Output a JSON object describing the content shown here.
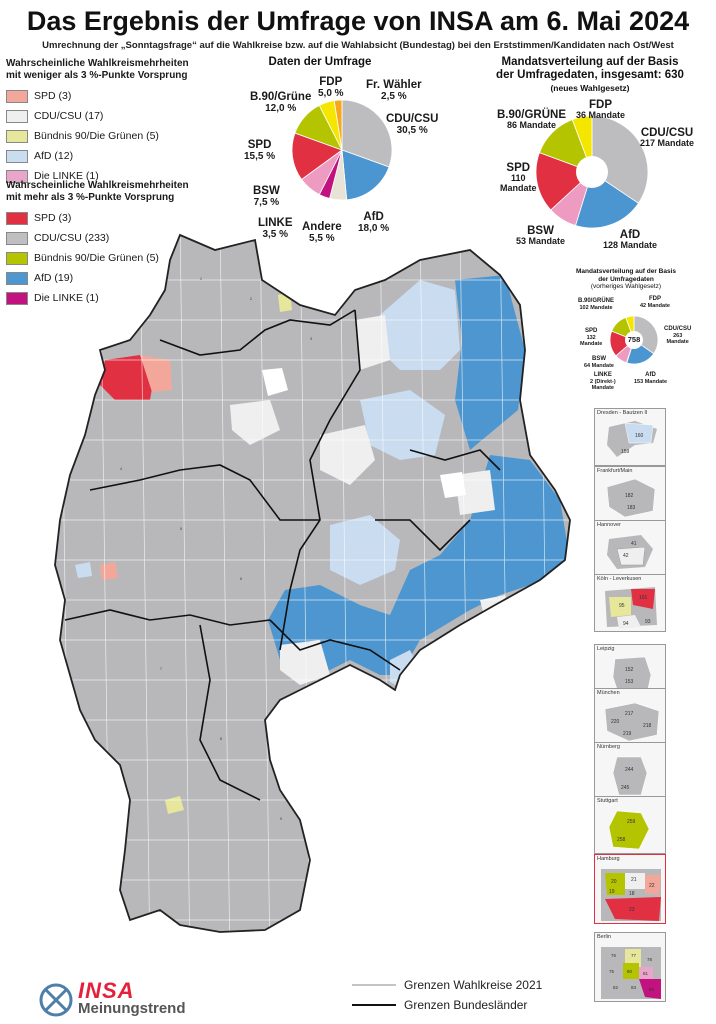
{
  "header": {
    "title": "Das Ergebnis der Umfrage von INSA am 6. Mai 2024",
    "subtitle": "Umrechnung der „Sonntagsfrage“ auf die Wahlkreise bzw. auf die Wahlabsicht (Bundestag) bei den Erststimmen/Kandidaten nach Ost/West"
  },
  "legend_weak": {
    "heading_line1": "Wahrscheinliche Wahlkreismehrheiten",
    "heading_line2": "mit weniger als 3 %-Punkte Vorsprung",
    "items": [
      {
        "label": "SPD (3)",
        "color": "#f2a79a"
      },
      {
        "label": "CDU/CSU (17)",
        "color": "#efefef"
      },
      {
        "label": "Bündnis 90/Die Grünen (5)",
        "color": "#e6e79a"
      },
      {
        "label": "AfD (12)",
        "color": "#c9dcf0"
      },
      {
        "label": "Die LINKE (1)",
        "color": "#e9a6cb"
      }
    ]
  },
  "legend_strong": {
    "heading_line1": "Wahrscheinliche Wahlkreismehrheiten",
    "heading_line2": "mit mehr als 3 %-Punkte Vorsprung",
    "items": [
      {
        "label": "SPD (3)",
        "color": "#e03042"
      },
      {
        "label": "CDU/CSU (233)",
        "color": "#bfbfc2"
      },
      {
        "label": "Bündnis 90/Die Grünen (5)",
        "color": "#b5c400"
      },
      {
        "label": "AfD (19)",
        "color": "#4d96d0"
      },
      {
        "label": "Die LINKE (1)",
        "color": "#c2127f"
      }
    ]
  },
  "chart_data": [
    {
      "type": "pie",
      "title": "Daten der Umfrage",
      "slices": [
        {
          "name": "CDU/CSU",
          "label": "30,5 %",
          "value": 30.5,
          "color": "#bdbdc0"
        },
        {
          "name": "AfD",
          "label": "18,0 %",
          "value": 18.0,
          "color": "#4b95d0"
        },
        {
          "name": "Andere",
          "label": "5,5 %",
          "value": 5.5,
          "color": "#e7e3d6"
        },
        {
          "name": "LINKE",
          "label": "3,5 %",
          "value": 3.5,
          "color": "#c2127f"
        },
        {
          "name": "BSW",
          "label": "7,5 %",
          "value": 7.5,
          "color": "#ee9bc1"
        },
        {
          "name": "SPD",
          "label": "15,5 %",
          "value": 15.5,
          "color": "#e03042"
        },
        {
          "name": "B.90/Grüne",
          "label": "12,0 %",
          "value": 12.0,
          "color": "#b5c400"
        },
        {
          "name": "FDP",
          "label": "5,0 %",
          "value": 5.0,
          "color": "#f5e600"
        },
        {
          "name": "Fr. Wähler",
          "label": "2,5 %",
          "value": 2.5,
          "color": "#f6a81d"
        }
      ]
    },
    {
      "type": "pie",
      "title_line1": "Mandatsverteilung auf der Basis",
      "title_line2": "der Umfragedaten, insgesamt: 630",
      "title_line3": "(neues Wahlgesetz)",
      "slices": [
        {
          "name": "CDU/CSU",
          "label": "217 Mandate",
          "value": 217,
          "color": "#bdbdc0"
        },
        {
          "name": "AfD",
          "label": "128 Mandate",
          "value": 128,
          "color": "#4b95d0"
        },
        {
          "name": "BSW",
          "label": "53 Mandate",
          "value": 53,
          "color": "#ee9bc1"
        },
        {
          "name": "SPD",
          "label_line1": "110",
          "label_line2": "Mandate",
          "value": 110,
          "color": "#e03042"
        },
        {
          "name": "B.90/GRÜNE",
          "label": "86 Mandate",
          "value": 86,
          "color": "#b5c400"
        },
        {
          "name": "FDP",
          "label": "36 Mandate",
          "value": 36,
          "color": "#f5e600"
        }
      ]
    },
    {
      "type": "pie",
      "title_line1": "Mandatsverteilung auf der Basis",
      "title_line2": "der Umfragedaten",
      "title_line3": "(vorheriges Wahlgesetz)",
      "center": "758",
      "slices": [
        {
          "name": "CDU/CSU",
          "label_line1": "263",
          "label_line2": "Mandate",
          "value": 263,
          "color": "#bdbdc0"
        },
        {
          "name": "AfD",
          "label": "153 Mandate",
          "value": 153,
          "color": "#4b95d0"
        },
        {
          "name": "LINKE",
          "label_line1": "2 (Direkt-)",
          "label_line2": "Mandate",
          "value": 2,
          "color": "#c2127f"
        },
        {
          "name": "BSW",
          "label": "64 Mandate",
          "value": 64,
          "color": "#ee9bc1"
        },
        {
          "name": "SPD",
          "label_line1": "132",
          "label_line2": "Mandate",
          "value": 132,
          "color": "#e03042"
        },
        {
          "name": "B.90/GRÜNE",
          "label": "102 Mandate",
          "value": 102,
          "color": "#b5c400"
        },
        {
          "name": "FDP",
          "label": "42 Mandate",
          "value": 42,
          "color": "#f5e600"
        }
      ]
    }
  ],
  "insets": [
    {
      "name": "Dresden - Bautzen II",
      "numbers": [
        "160",
        "159"
      ]
    },
    {
      "name": "Frankfurt/Main",
      "numbers": [
        "182",
        "183"
      ]
    },
    {
      "name": "Hannover",
      "numbers": [
        "41",
        "42"
      ]
    },
    {
      "name": "Köln - Leverkusen",
      "numbers": [
        "101",
        "95",
        "94",
        "93"
      ]
    },
    {
      "name": "Leipzig",
      "numbers": [
        "152",
        "153"
      ]
    },
    {
      "name": "München",
      "numbers": [
        "217",
        "220",
        "218",
        "219"
      ]
    },
    {
      "name": "Nürnberg",
      "numbers": [
        "244",
        "245"
      ]
    },
    {
      "name": "Stuttgart",
      "numbers": [
        "259",
        "258"
      ]
    },
    {
      "name": "Hamburg",
      "numbers": [
        "21",
        "20",
        "19",
        "18",
        "22",
        "23"
      ]
    },
    {
      "name": "Berlin",
      "numbers": [
        "76",
        "77",
        "78",
        "75",
        "80",
        "81",
        "82",
        "83",
        "84"
      ]
    }
  ],
  "map_legend": {
    "wahlkreise": "Grenzen Wahlkreise 2021",
    "bundeslaender": "Grenzen Bundesländer"
  },
  "brand": {
    "name": "INSA",
    "sub": "Meinungstrend"
  }
}
